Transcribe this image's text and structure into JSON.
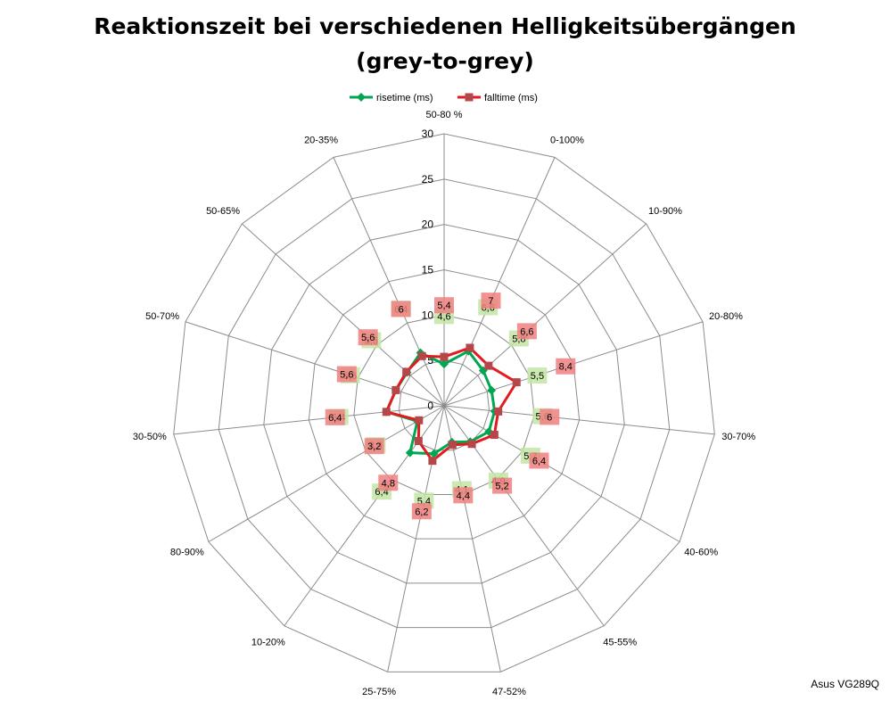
{
  "chart_data": {
    "type": "radar",
    "title_line1": "Reaktionszeit bei verschiedenen Helligkeitsübergängen",
    "title_line2": "(grey-to-grey)",
    "categories": [
      "50-80 %",
      "0-100%",
      "10-90%",
      "20-80%",
      "30-70%",
      "40-60%",
      "45-55%",
      "47-52%",
      "25-75%",
      "10-20%",
      "80-90%",
      "30-50%",
      "50-70%",
      "50-65%",
      "20-35%"
    ],
    "radial_ticks": [
      0,
      5,
      10,
      15,
      20,
      25,
      30
    ],
    "rmax": 30,
    "series": [
      {
        "name": "risetime (ms)",
        "color": "#00a650",
        "label_bg": "#c3e5a5",
        "values": [
          4.6,
          6.6,
          5.8,
          5.5,
          5.6,
          5.7,
          4.9,
          4.1,
          5.4,
          6.4,
          3.4,
          6.4,
          5.6,
          5.5,
          6.4
        ],
        "labels": [
          "4,6",
          "6,6",
          "5,8",
          "5,5",
          "5,6",
          "5,7",
          "4,9",
          "4,1",
          "5,4",
          "6,4",
          "3,4",
          "6,4",
          "5,6",
          "5,5",
          "6,4"
        ]
      },
      {
        "name": "falltime (ms)",
        "color": "#e41a1c",
        "marker_color": "#b5464a",
        "label_bg": "#f08080",
        "values": [
          5.4,
          7,
          6.6,
          8.4,
          6,
          6.4,
          5.2,
          4.4,
          6.2,
          4.8,
          3.2,
          6.4,
          5.6,
          5.6,
          6
        ],
        "labels": [
          "5,4",
          "7",
          "6,6",
          "8,4",
          "6",
          "6,4",
          "5,2",
          "4,4",
          "6,2",
          "4,8",
          "3,2",
          "6,4",
          "5,6",
          "5,6",
          "6"
        ]
      }
    ],
    "legend_position": "top"
  },
  "watermark": "Asus VG289Q"
}
